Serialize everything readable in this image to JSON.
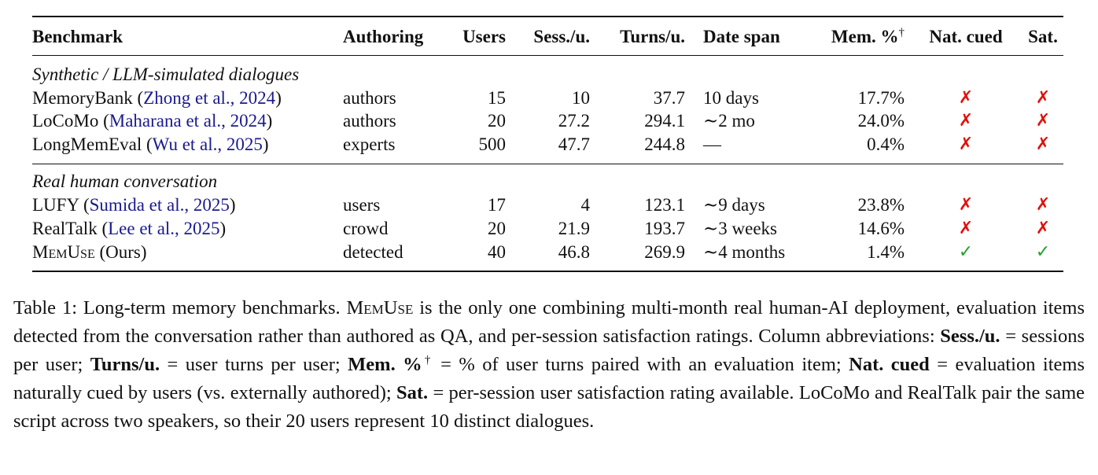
{
  "table": {
    "headers": {
      "benchmark": "Benchmark",
      "authoring": "Authoring",
      "users": "Users",
      "sess": "Sess./u.",
      "turns": "Turns/u.",
      "date_span": "Date span",
      "mem": "Mem. %",
      "mem_sup": "†",
      "nat_cued": "Nat. cued",
      "sat": "Sat."
    },
    "sections": [
      {
        "title": "Synthetic / LLM-simulated dialogues",
        "rows": [
          {
            "name": "MemoryBank",
            "cite_open": "(",
            "cite": "Zhong et al., 2024",
            "cite_close": ")",
            "authoring": "authors",
            "users": "15",
            "sess": "10",
            "turns": "37.7",
            "span": "10 days",
            "mem": "17.7%",
            "nat": "✗",
            "sat": "✗"
          },
          {
            "name": "LoCoMo",
            "cite_open": "(",
            "cite": "Maharana et al., 2024",
            "cite_close": ")",
            "authoring": "authors",
            "users": "20",
            "sess": "27.2",
            "turns": "294.1",
            "span": "∼2 mo",
            "mem": "24.0%",
            "nat": "✗",
            "sat": "✗"
          },
          {
            "name": "LongMemEval",
            "cite_open": "(",
            "cite": "Wu et al., 2025",
            "cite_close": ")",
            "authoring": "experts",
            "users": "500",
            "sess": "47.7",
            "turns": "244.8",
            "span": "—",
            "mem": "0.4%",
            "nat": "✗",
            "sat": "✗"
          }
        ]
      },
      {
        "title": "Real human conversation",
        "rows": [
          {
            "name": "LUFY",
            "cite_open": "(",
            "cite": "Sumida et al., 2025",
            "cite_close": ")",
            "authoring": "users",
            "users": "17",
            "sess": "4",
            "turns": "123.1",
            "span": "∼9 days",
            "mem": "23.8%",
            "nat": "✗",
            "sat": "✗"
          },
          {
            "name": "RealTalk",
            "cite_open": "(",
            "cite": "Lee et al., 2025",
            "cite_close": ")",
            "authoring": "crowd",
            "users": "20",
            "sess": "21.9",
            "turns": "193.7",
            "span": "∼3 weeks",
            "mem": "14.6%",
            "nat": "✗",
            "sat": "✗"
          },
          {
            "name": "MemUse",
            "suffix": "(Ours)",
            "authoring": "detected",
            "users": "40",
            "sess": "46.8",
            "turns": "269.9",
            "span": "∼4 months",
            "mem": "1.4%",
            "nat": "✓",
            "sat": "✓"
          }
        ]
      }
    ]
  },
  "caption": {
    "p1": "Table 1: Long-term memory benchmarks. ",
    "name": "MemUse",
    "p2": " is the only one combining multi-month real human-AI deployment, evaluation items detected from the conversation rather than authored as QA, and per-session satisfaction ratings. Column abbreviations: ",
    "t1": "Sess./u.",
    "d1": " = sessions per user; ",
    "t2": "Turns/u.",
    "d2": " = user turns per user; ",
    "t3": "Mem. %",
    "t3_sup": "†",
    "d3": " = % of user turns paired with an evaluation item; ",
    "t4": "Nat. cued",
    "d4": " = evaluation items naturally cued by users (vs. externally authored); ",
    "t5": "Sat.",
    "d5": " = per-session user satisfaction rating available. LoCoMo and RealTalk pair the same script across two speakers, so their 20 users represent 10 distinct dialogues."
  },
  "colors": {
    "cross": "#e0110b",
    "check": "#21a32a",
    "citation": "#1a1a8f"
  }
}
